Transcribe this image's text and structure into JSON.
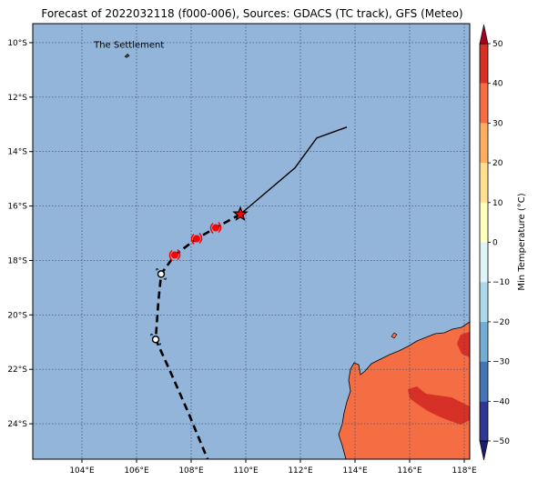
{
  "title": "Forecast of 2022032118 (f000-006), Sources: GDACS (TC track), GFS (Meteo)",
  "map": {
    "lon_range": [
      102.2,
      118.2
    ],
    "lat_range": [
      -25.3,
      -9.3
    ],
    "ocean_color": "#92b5d9",
    "land_color": "#f46d43",
    "hot_land_color": "#d73027",
    "grid": "dotted",
    "x_ticks": [
      {
        "value": 104,
        "label": "104°E"
      },
      {
        "value": 106,
        "label": "106°E"
      },
      {
        "value": 108,
        "label": "108°E"
      },
      {
        "value": 110,
        "label": "110°E"
      },
      {
        "value": 112,
        "label": "112°E"
      },
      {
        "value": 114,
        "label": "114°E"
      },
      {
        "value": 116,
        "label": "116°E"
      },
      {
        "value": 118,
        "label": "118°E"
      }
    ],
    "y_ticks": [
      {
        "value": -10,
        "label": "10°S"
      },
      {
        "value": -12,
        "label": "12°S"
      },
      {
        "value": -14,
        "label": "14°S"
      },
      {
        "value": -16,
        "label": "16°S"
      },
      {
        "value": -18,
        "label": "18°S"
      },
      {
        "value": -20,
        "label": "20°S"
      },
      {
        "value": -22,
        "label": "22°S"
      },
      {
        "value": -24,
        "label": "24°S"
      }
    ],
    "place": {
      "name": "The Settlement",
      "lon": 105.67,
      "lat": -10.48
    }
  },
  "track": {
    "past": [
      [
        113.7,
        -13.1
      ],
      [
        112.6,
        -13.5
      ],
      [
        111.8,
        -14.6
      ],
      [
        109.8,
        -16.3
      ]
    ],
    "current": [
      109.8,
      -16.3
    ],
    "forecast": [
      [
        109.8,
        -16.3
      ],
      [
        108.9,
        -16.8
      ],
      [
        108.2,
        -17.2
      ],
      [
        107.4,
        -17.8
      ],
      [
        106.9,
        -18.5
      ],
      [
        106.8,
        -19.5
      ],
      [
        106.7,
        -20.9
      ],
      [
        107.2,
        -22.0
      ],
      [
        107.9,
        -23.6
      ],
      [
        108.6,
        -25.3
      ]
    ],
    "cyclone_symbols": [
      [
        108.9,
        -16.8
      ],
      [
        108.2,
        -17.2
      ],
      [
        107.4,
        -17.8
      ]
    ],
    "low_symbols": [
      [
        106.9,
        -18.5
      ],
      [
        106.7,
        -20.9
      ]
    ]
  },
  "colorbar": {
    "label": "Min Temperature (°C)",
    "range": [
      -50,
      50
    ],
    "levels": [
      {
        "from": -50,
        "to": -40,
        "color": "#313695"
      },
      {
        "from": -40,
        "to": -30,
        "color": "#4575b4"
      },
      {
        "from": -30,
        "to": -20,
        "color": "#74add1"
      },
      {
        "from": -20,
        "to": -10,
        "color": "#abd9e9"
      },
      {
        "from": -10,
        "to": 0,
        "color": "#e0f3f8"
      },
      {
        "from": 0,
        "to": 10,
        "color": "#ffffbf"
      },
      {
        "from": 10,
        "to": 20,
        "color": "#fee090"
      },
      {
        "from": 20,
        "to": 30,
        "color": "#fdae61"
      },
      {
        "from": 30,
        "to": 40,
        "color": "#f46d43"
      },
      {
        "from": 40,
        "to": 50,
        "color": "#d73027"
      }
    ],
    "under_color": "#1c1c6e",
    "over_color": "#a50026",
    "ticks": [
      "50",
      "40",
      "30",
      "20",
      "10",
      "0",
      "−10",
      "−20",
      "−30",
      "−40",
      "−50"
    ],
    "tick_values": [
      50,
      40,
      30,
      20,
      10,
      0,
      -10,
      -20,
      -30,
      -40,
      -50
    ]
  }
}
